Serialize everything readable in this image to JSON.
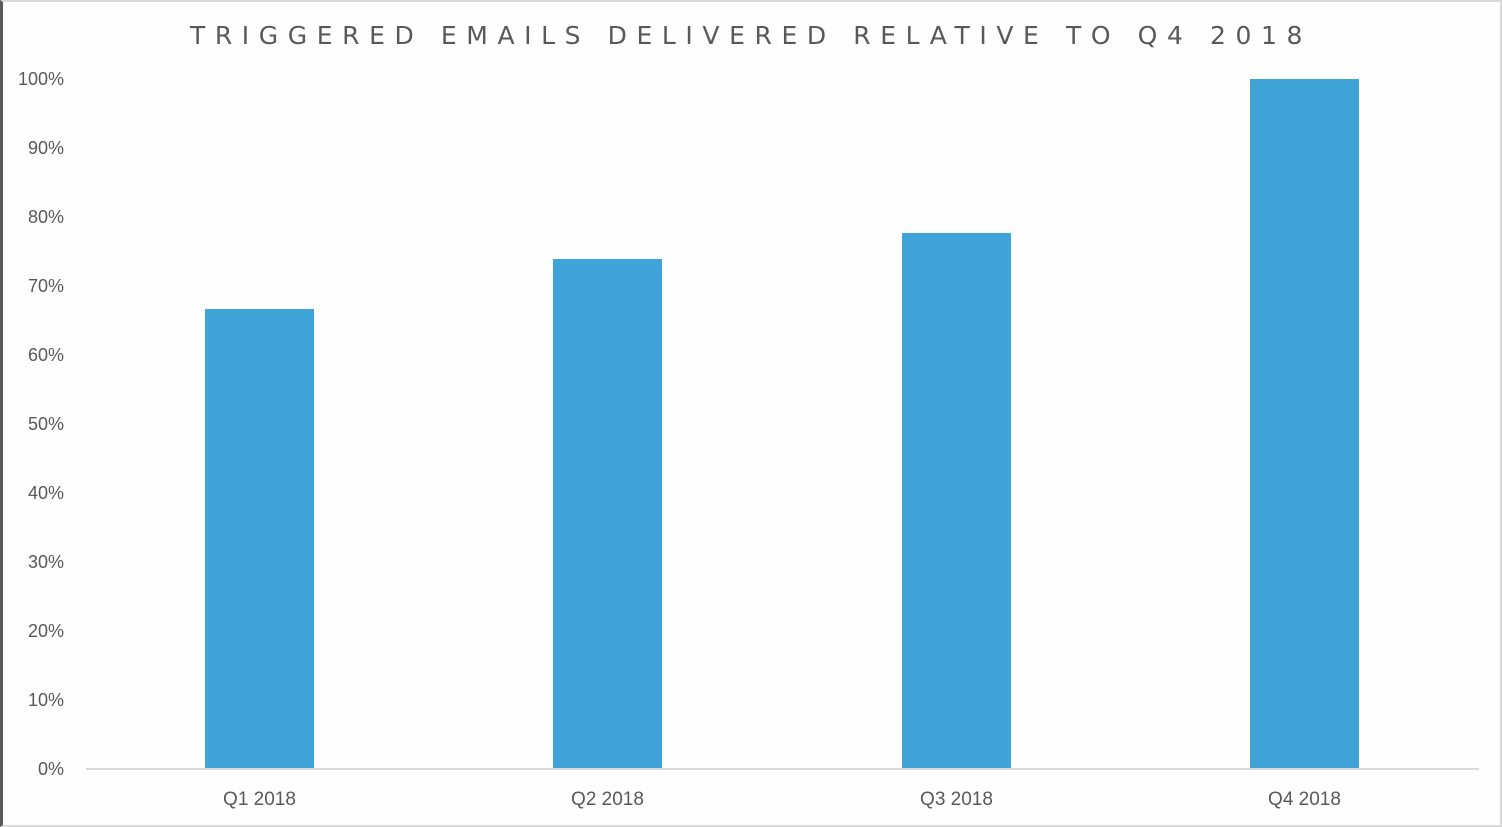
{
  "chart_data": {
    "type": "bar",
    "title": "TRIGGERED EMAILS DELIVERED RELATIVE TO Q4 2018",
    "xlabel": "",
    "ylabel": "",
    "categories": [
      "Q1 2018",
      "Q2 2018",
      "Q3 2018",
      "Q4 2018"
    ],
    "values": [
      66.7,
      73.9,
      77.7,
      100
    ],
    "value_format": "percent",
    "ylim": [
      0,
      100
    ],
    "yticks": [
      "0%",
      "10%",
      "20%",
      "30%",
      "40%",
      "50%",
      "60%",
      "70%",
      "80%",
      "90%",
      "100%"
    ],
    "grid": false,
    "legend": null,
    "bar_color": "#40a4d8",
    "text_color": "#595959",
    "axis_color": "#d9d9d9"
  }
}
